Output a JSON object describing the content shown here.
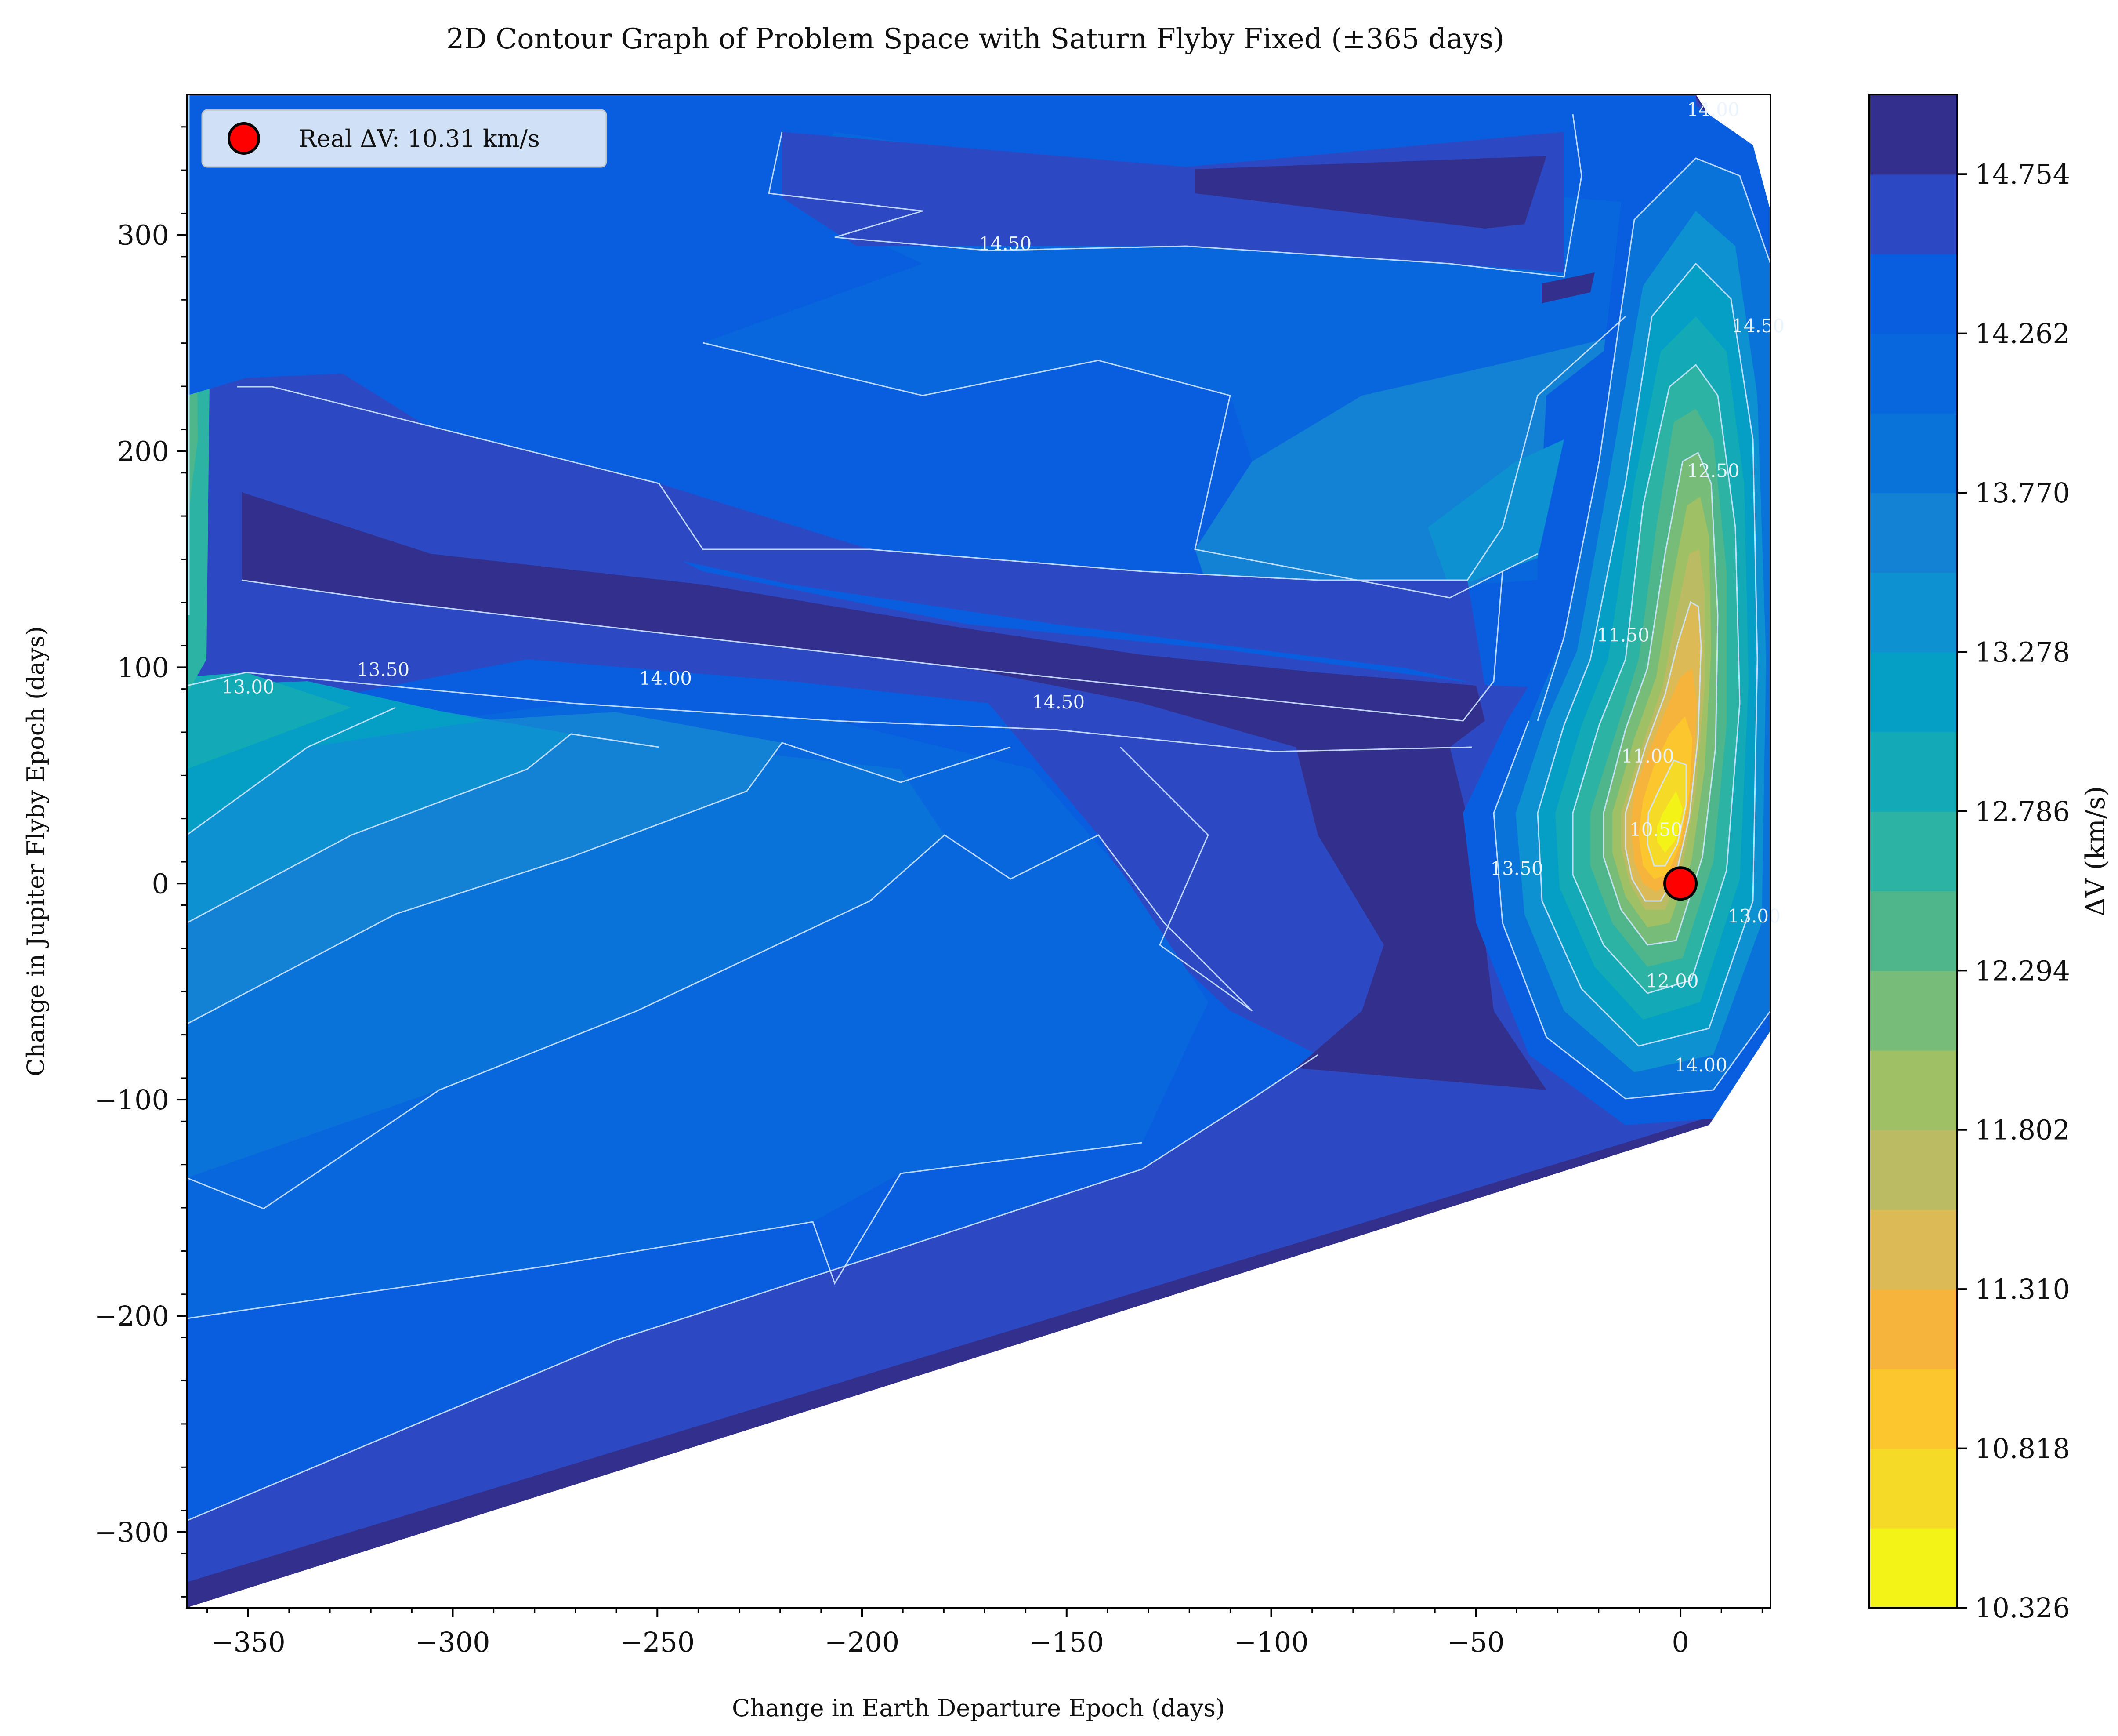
{
  "chart_data": {
    "type": "contour",
    "title": "2D Contour Graph of Problem Space with Saturn Flyby Fixed (±365 days)",
    "xlabel": "Change in Earth Departure Epoch (days)",
    "ylabel": "Change in Jupiter Flyby Epoch (days)",
    "xlim": [
      -365,
      22
    ],
    "ylim": [
      -335,
      365
    ],
    "x_ticks": [
      -350,
      -300,
      -250,
      -200,
      -150,
      -100,
      -50,
      0
    ],
    "y_ticks": [
      -300,
      -200,
      -100,
      0,
      100,
      200,
      300
    ],
    "x_tick_labels": [
      "−350",
      "−300",
      "−250",
      "−200",
      "−150",
      "−100",
      "−50",
      "0"
    ],
    "y_tick_labels": [
      "−300",
      "−200",
      "−100",
      "0",
      "100",
      "200",
      "300"
    ],
    "colorbar": {
      "label": "ΔV (km/s)",
      "min": 10.326,
      "max": 15.0,
      "tick_values": [
        10.326,
        10.818,
        11.31,
        11.802,
        12.294,
        12.786,
        13.278,
        13.77,
        14.262,
        14.754
      ],
      "tick_labels": [
        "10.326",
        "10.818",
        "11.310",
        "11.802",
        "12.294",
        "12.786",
        "13.278",
        "13.770",
        "14.262",
        "14.754"
      ],
      "band_colors": [
        "#f4f318",
        "#f6da28",
        "#fbc72d",
        "#f7b43c",
        "#dcba55",
        "#bbbb63",
        "#a0c066",
        "#78bd77",
        "#4fb68c",
        "#2db3a3",
        "#11aab5",
        "#059fc6",
        "#0d91d1",
        "#1381d4",
        "#0a73da",
        "#0867dd",
        "#095ee0",
        "#2c48c3",
        "#332f8c"
      ]
    },
    "contour_levels": [
      10.5,
      11.0,
      11.5,
      12.0,
      12.5,
      13.0,
      13.5,
      14.0,
      14.5
    ],
    "contour_labels": [
      {
        "text": "14.50",
        "x": -165,
        "y": 293
      },
      {
        "text": "13.50",
        "x": -317,
        "y": 96
      },
      {
        "text": "13.00",
        "x": -350,
        "y": 88
      },
      {
        "text": "14.00",
        "x": -248,
        "y": 92
      },
      {
        "text": "14.50",
        "x": -152,
        "y": 81
      },
      {
        "text": "12.50",
        "x": 8,
        "y": 188
      },
      {
        "text": "11.50",
        "x": -14,
        "y": 112
      },
      {
        "text": "11.00",
        "x": -8,
        "y": 56
      },
      {
        "text": "10.50",
        "x": -6,
        "y": 22
      },
      {
        "text": "13.50",
        "x": -40,
        "y": 4
      },
      {
        "text": "12.00",
        "x": -2,
        "y": -48
      },
      {
        "text": "13.00",
        "x": 18,
        "y": -18
      },
      {
        "text": "14.00",
        "x": 5,
        "y": -87
      },
      {
        "text": "14.00",
        "x": 8,
        "y": 355
      },
      {
        "text": "14.50",
        "x": 19,
        "y": 255
      }
    ],
    "marker": {
      "x": 0,
      "y": 0,
      "color": "#ff0000",
      "label": "Real ΔV: 10.31 km/s"
    },
    "legend_position": "upper-left"
  }
}
